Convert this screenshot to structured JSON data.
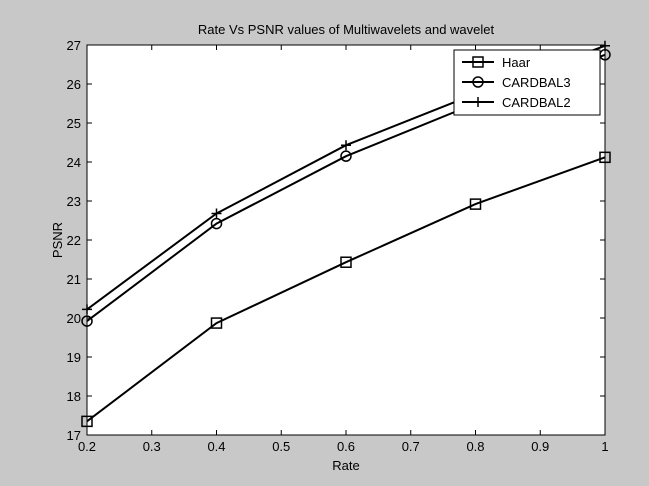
{
  "chart_data": {
    "type": "line",
    "title": "Rate Vs PSNR values of Multiwavelets and wavelet",
    "xlabel": "Rate",
    "ylabel": "PSNR",
    "xlim": [
      0.2,
      1
    ],
    "ylim": [
      17,
      27
    ],
    "xticks": [
      0.2,
      0.3,
      0.4,
      0.5,
      0.6,
      0.7,
      0.8,
      0.9,
      1
    ],
    "xtick_labels": [
      "0.2",
      "0.3",
      "0.4",
      "0.5",
      "0.6",
      "0.7",
      "0.8",
      "0.9",
      "1"
    ],
    "yticks": [
      17,
      18,
      19,
      20,
      21,
      22,
      23,
      24,
      25,
      26,
      27
    ],
    "ytick_labels": [
      "17",
      "18",
      "19",
      "20",
      "21",
      "22",
      "23",
      "24",
      "25",
      "26",
      "27"
    ],
    "grid": false,
    "legend_position": "top-right",
    "x": [
      0.2,
      0.4,
      0.6,
      0.8,
      1
    ],
    "series": [
      {
        "name": "Haar",
        "marker": "square",
        "values": [
          17.35,
          19.87,
          21.43,
          22.92,
          24.12
        ]
      },
      {
        "name": "CARDBAL3",
        "marker": "circle",
        "values": [
          19.92,
          22.42,
          24.15,
          25.5,
          26.75
        ]
      },
      {
        "name": "CARDBAL2",
        "marker": "plus",
        "values": [
          20.22,
          22.68,
          24.43,
          25.75,
          26.98
        ]
      }
    ],
    "colors": {
      "background": "#c8c8c8",
      "plot_area": "#ffffff",
      "line": "#000000"
    }
  }
}
